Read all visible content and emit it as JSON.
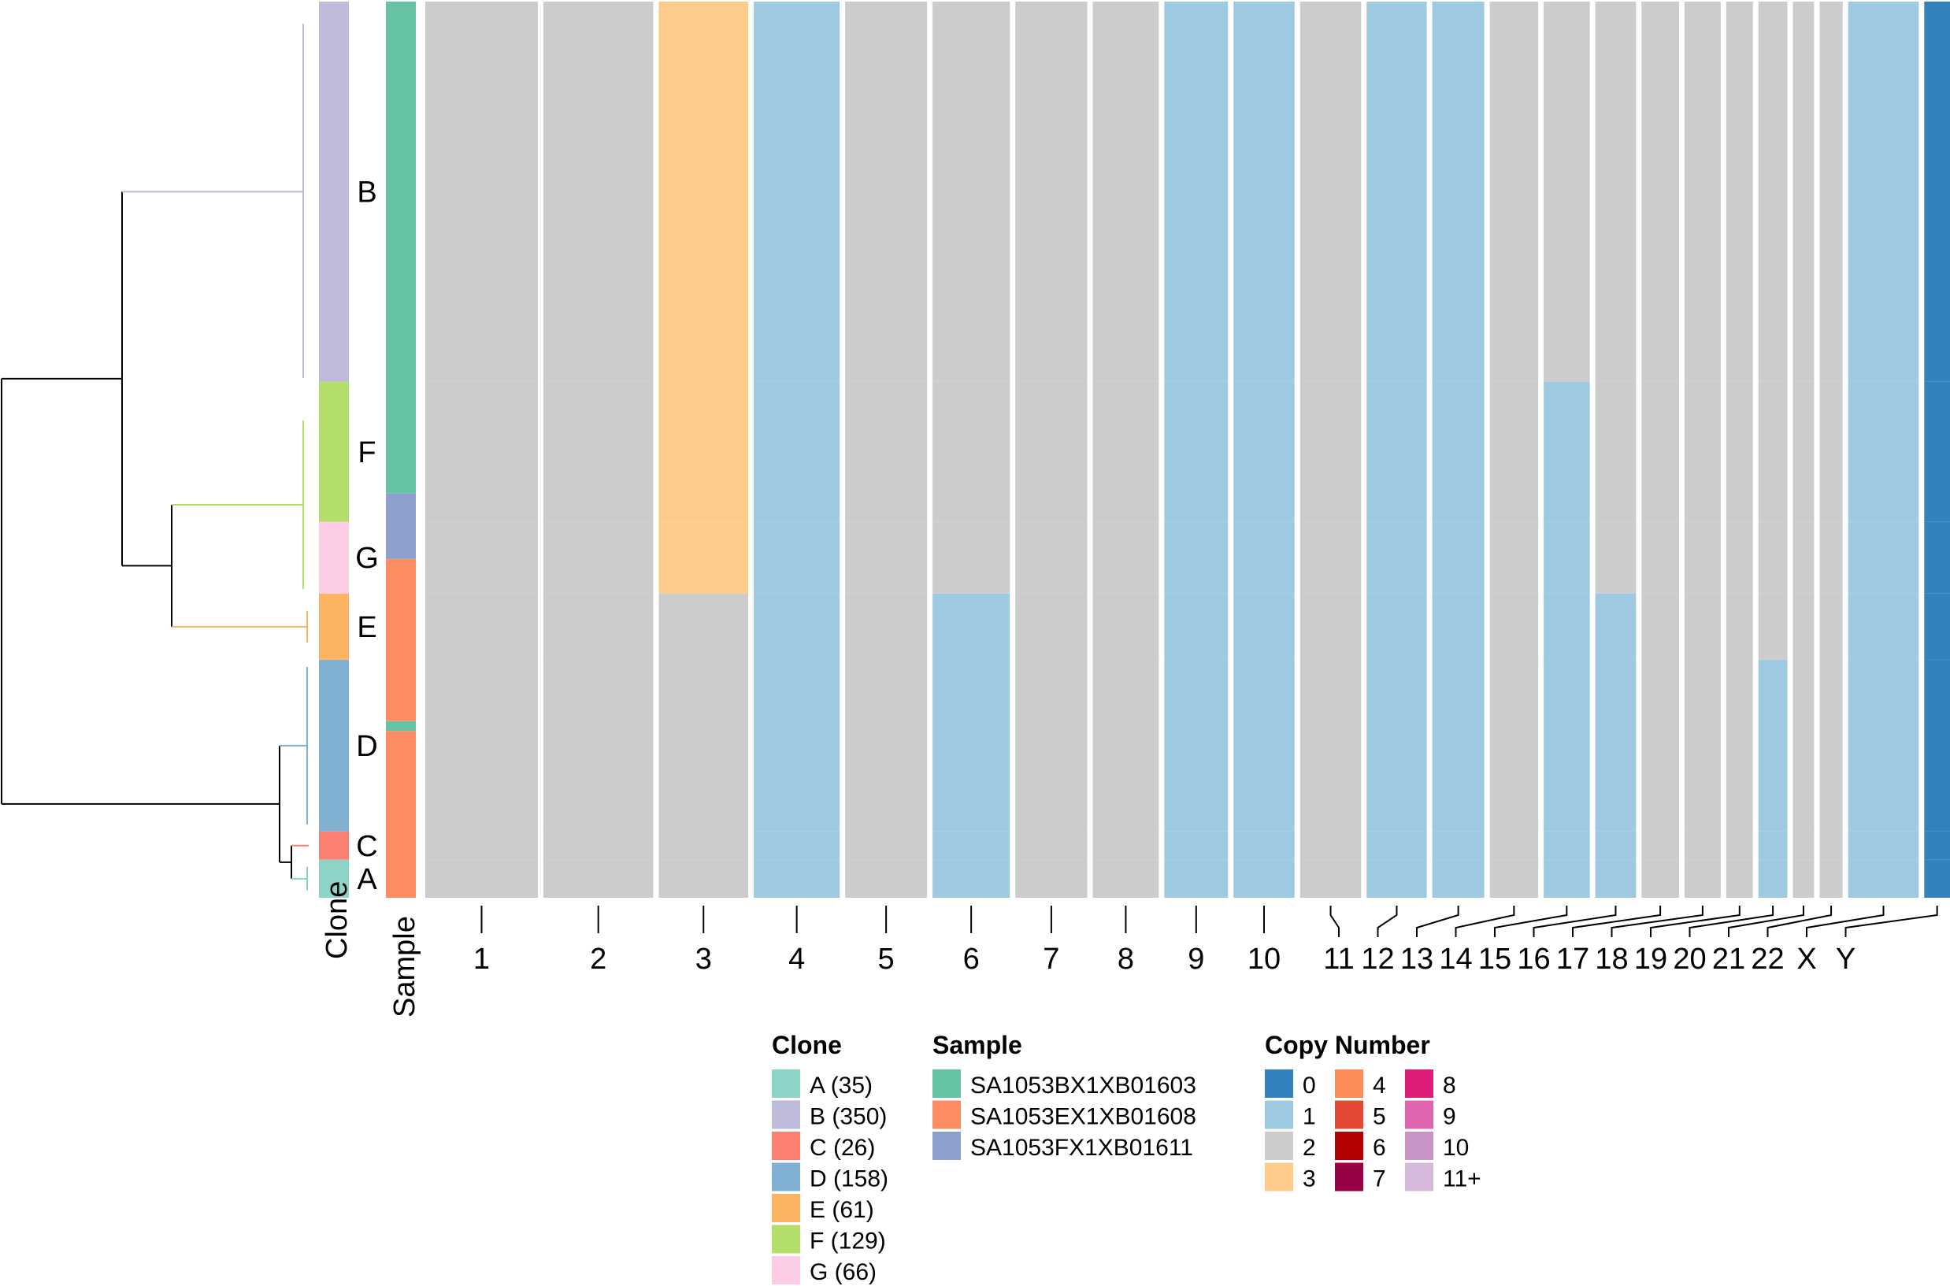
{
  "chart_data": {
    "type": "heatmap",
    "title": "",
    "row_annotations": {
      "clone_track_label": "Clone",
      "sample_track_label": "Sample"
    },
    "clone_segments_top_to_bottom": [
      {
        "clone": "B",
        "cells": 350
      },
      {
        "clone": "F",
        "cells": 129
      },
      {
        "clone": "G",
        "cells": 66
      },
      {
        "clone": "E",
        "cells": 61
      },
      {
        "clone": "D",
        "cells": 158
      },
      {
        "clone": "C",
        "cells": 26
      },
      {
        "clone": "A",
        "cells": 35
      }
    ],
    "sample_segments_top_to_bottom": [
      {
        "sample": "SA1053BX1XB01603",
        "fraction": 0.549
      },
      {
        "sample": "SA1053FX1XB01611",
        "fraction": 0.073
      },
      {
        "sample": "SA1053EX1XB01608",
        "fraction": 0.181
      },
      {
        "sample": "SA1053BX1XB01603",
        "fraction": 0.011
      },
      {
        "sample": "SA1053EX1XB01608",
        "fraction": 0.186
      }
    ],
    "chromosomes": [
      "1",
      "2",
      "3",
      "4",
      "5",
      "6",
      "7",
      "8",
      "9",
      "10",
      "11",
      "12",
      "13",
      "14",
      "15",
      "16",
      "17",
      "18",
      "19",
      "20",
      "21",
      "22",
      "X",
      "Y"
    ],
    "dominant_copy_number_by_clone": {
      "B": [
        2,
        2,
        3,
        1,
        2,
        2,
        2,
        2,
        1,
        1,
        2,
        1,
        1,
        2,
        2,
        2,
        2,
        2,
        2,
        2,
        2,
        2,
        1,
        0
      ],
      "F": [
        2,
        2,
        3,
        1,
        2,
        2,
        2,
        2,
        1,
        1,
        2,
        1,
        1,
        2,
        1,
        2,
        2,
        2,
        2,
        2,
        2,
        2,
        1,
        0
      ],
      "G": [
        2,
        2,
        3,
        1,
        2,
        2,
        2,
        2,
        1,
        1,
        2,
        1,
        1,
        2,
        1,
        2,
        2,
        2,
        2,
        2,
        2,
        2,
        1,
        0
      ],
      "E": [
        2,
        2,
        2,
        1,
        2,
        1,
        2,
        2,
        1,
        1,
        2,
        1,
        1,
        2,
        1,
        1,
        2,
        2,
        2,
        2,
        2,
        2,
        1,
        0
      ],
      "D": [
        2,
        2,
        2,
        1,
        2,
        1,
        2,
        2,
        1,
        1,
        2,
        1,
        1,
        2,
        1,
        1,
        2,
        2,
        2,
        1,
        2,
        2,
        1,
        0
      ],
      "C": [
        2,
        2,
        2,
        1,
        2,
        1,
        2,
        2,
        1,
        1,
        2,
        1,
        1,
        2,
        1,
        1,
        2,
        2,
        2,
        1,
        2,
        2,
        1,
        0
      ],
      "A": [
        2,
        2,
        2,
        1,
        2,
        1,
        2,
        2,
        1,
        1,
        2,
        1,
        1,
        2,
        1,
        1,
        2,
        2,
        2,
        1,
        2,
        2,
        1,
        0
      ]
    },
    "legends": {
      "clone": {
        "title": "Clone",
        "items": [
          {
            "label": "A (35)",
            "color": "#8dd3c7"
          },
          {
            "label": "B (350)",
            "color": "#bebada"
          },
          {
            "label": "C (26)",
            "color": "#fb8072"
          },
          {
            "label": "D (158)",
            "color": "#80b1d3"
          },
          {
            "label": "E (61)",
            "color": "#fdb462"
          },
          {
            "label": "F (129)",
            "color": "#b3de69"
          },
          {
            "label": "G (66)",
            "color": "#fccde5"
          }
        ]
      },
      "sample": {
        "title": "Sample",
        "items": [
          {
            "label": "SA1053BX1XB01603",
            "color": "#66c2a5"
          },
          {
            "label": "SA1053EX1XB01608",
            "color": "#fc8d62"
          },
          {
            "label": "SA1053FX1XB01611",
            "color": "#8da0cb"
          }
        ]
      },
      "copy_number": {
        "title": "Copy Number",
        "items": [
          {
            "label": "0",
            "color": "#3182bd"
          },
          {
            "label": "1",
            "color": "#9ecae1"
          },
          {
            "label": "2",
            "color": "#cccccc"
          },
          {
            "label": "3",
            "color": "#fdcc8a"
          },
          {
            "label": "4",
            "color": "#fc8d59"
          },
          {
            "label": "5",
            "color": "#e34a33"
          },
          {
            "label": "6",
            "color": "#b30000"
          },
          {
            "label": "7",
            "color": "#980043"
          },
          {
            "label": "8",
            "color": "#dd1c77"
          },
          {
            "label": "9",
            "color": "#df65b0"
          },
          {
            "label": "10",
            "color": "#c994c7"
          },
          {
            "label": "11+",
            "color": "#d4b9da"
          }
        ]
      }
    },
    "tree_colors": {
      "root": "#000000",
      "B": "#bebada",
      "E": "#fdb462",
      "D": "#80b1d3",
      "A": "#8dd3c7",
      "C": "#fb8072",
      "F": "#b3de69",
      "G": "#fccde5"
    }
  }
}
